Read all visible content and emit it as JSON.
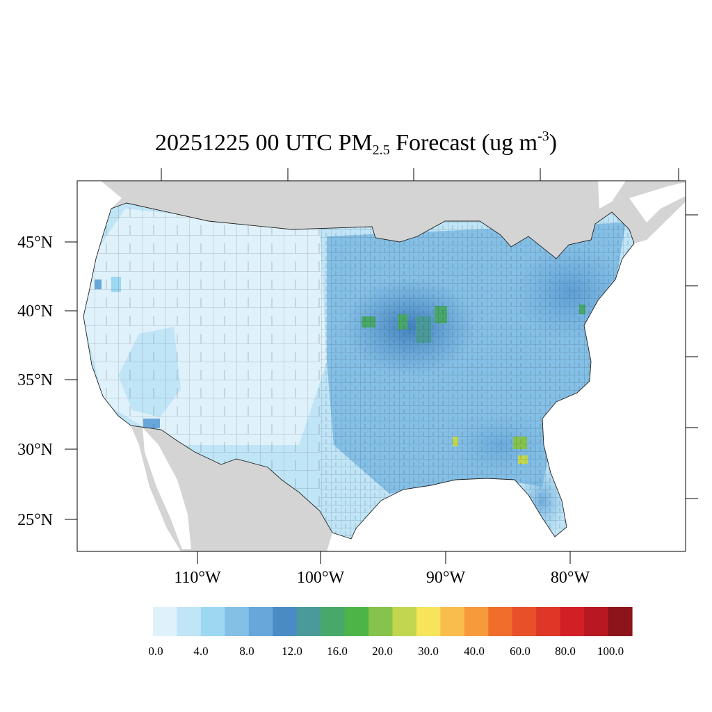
{
  "title": {
    "date": "20251225",
    "hour": "00",
    "timezone": "UTC",
    "pollutant": "PM",
    "pollutant_sub": "2.5",
    "product": "Forecast",
    "units_prefix": "(ug m",
    "units_exp": "-3",
    "units_suffix": ")"
  },
  "lat_labels": [
    "45°N",
    "40°N",
    "35°N",
    "30°N",
    "25°N"
  ],
  "lon_labels": [
    "110°W",
    "100°W",
    "90°W",
    "80°W"
  ],
  "colorbar": {
    "colors": [
      "#dff1fa",
      "#bfe5f7",
      "#9dd8f3",
      "#84bfe6",
      "#67a7da",
      "#4a8bc6",
      "#4a9a9a",
      "#48a86a",
      "#4db548",
      "#86c34d",
      "#c2d64f",
      "#f7e45a",
      "#f8bd4c",
      "#f69a3c",
      "#f06d2b",
      "#e85029",
      "#de3627",
      "#d21f26",
      "#b8181f",
      "#8c141a"
    ],
    "labels": [
      "0.0",
      "4.0",
      "8.0",
      "12.0",
      "16.0",
      "20.0",
      "30.0",
      "40.0",
      "60.0",
      "80.0",
      "100.0"
    ]
  },
  "map": {
    "land_outside_color": "#d4d4d4",
    "water_color": "#ffffff",
    "base_concentration_color": "#bfe5f7",
    "hotspot_colors": [
      "#4a8bc6",
      "#4a9a9a",
      "#48a86a",
      "#86c34d",
      "#c2d64f"
    ]
  }
}
